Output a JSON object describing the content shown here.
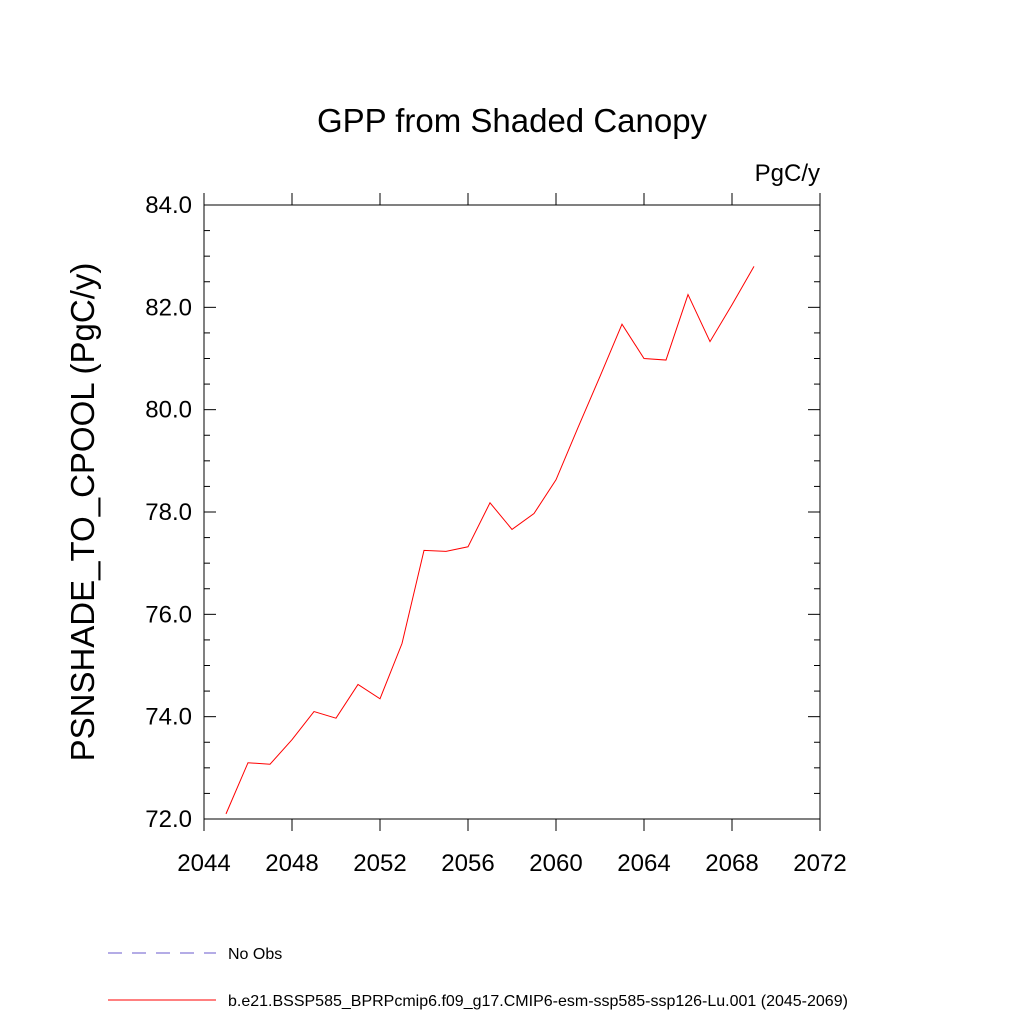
{
  "chart_data": {
    "type": "line",
    "title": "GPP from Shaded Canopy",
    "units_label": "PgC/y",
    "ylabel": "PSNSHADE_TO_CPOOL  (PgC/y)",
    "xlabel": "",
    "xlim": [
      2044,
      2072
    ],
    "ylim": [
      72.0,
      84.0
    ],
    "x_ticks": [
      "2044",
      "2048",
      "2052",
      "2056",
      "2060",
      "2064",
      "2068",
      "2072"
    ],
    "y_ticks": [
      "72.0",
      "74.0",
      "76.0",
      "78.0",
      "80.0",
      "82.0",
      "84.0"
    ],
    "grid": false,
    "legend_position": "bottom-left",
    "series": [
      {
        "name": "b.e21.BSSP585_BPRPcmip6.f09_g17.CMIP6-esm-ssp585-ssp126-Lu.001 (2045-2069)",
        "color": "#ff0000",
        "dash": "solid",
        "x": [
          2045,
          2046,
          2047,
          2048,
          2049,
          2050,
          2051,
          2052,
          2053,
          2054,
          2055,
          2056,
          2057,
          2058,
          2059,
          2060,
          2061,
          2062,
          2063,
          2064,
          2065,
          2066,
          2067,
          2068,
          2069
        ],
        "y": [
          72.1,
          73.1,
          73.07,
          73.55,
          74.1,
          73.97,
          74.63,
          74.35,
          75.43,
          77.25,
          77.23,
          77.32,
          78.18,
          77.66,
          77.97,
          78.63,
          79.65,
          80.65,
          81.67,
          81.0,
          80.97,
          82.25,
          81.33,
          82.05,
          82.8
        ]
      }
    ],
    "legend": [
      {
        "label": "No Obs",
        "color": "#6a5acd",
        "dash": "dashed"
      },
      {
        "label": "b.e21.BSSP585_BPRPcmip6.f09_g17.CMIP6-esm-ssp585-ssp126-Lu.001 (2045-2069)",
        "color": "#ff0000",
        "dash": "solid"
      }
    ]
  }
}
